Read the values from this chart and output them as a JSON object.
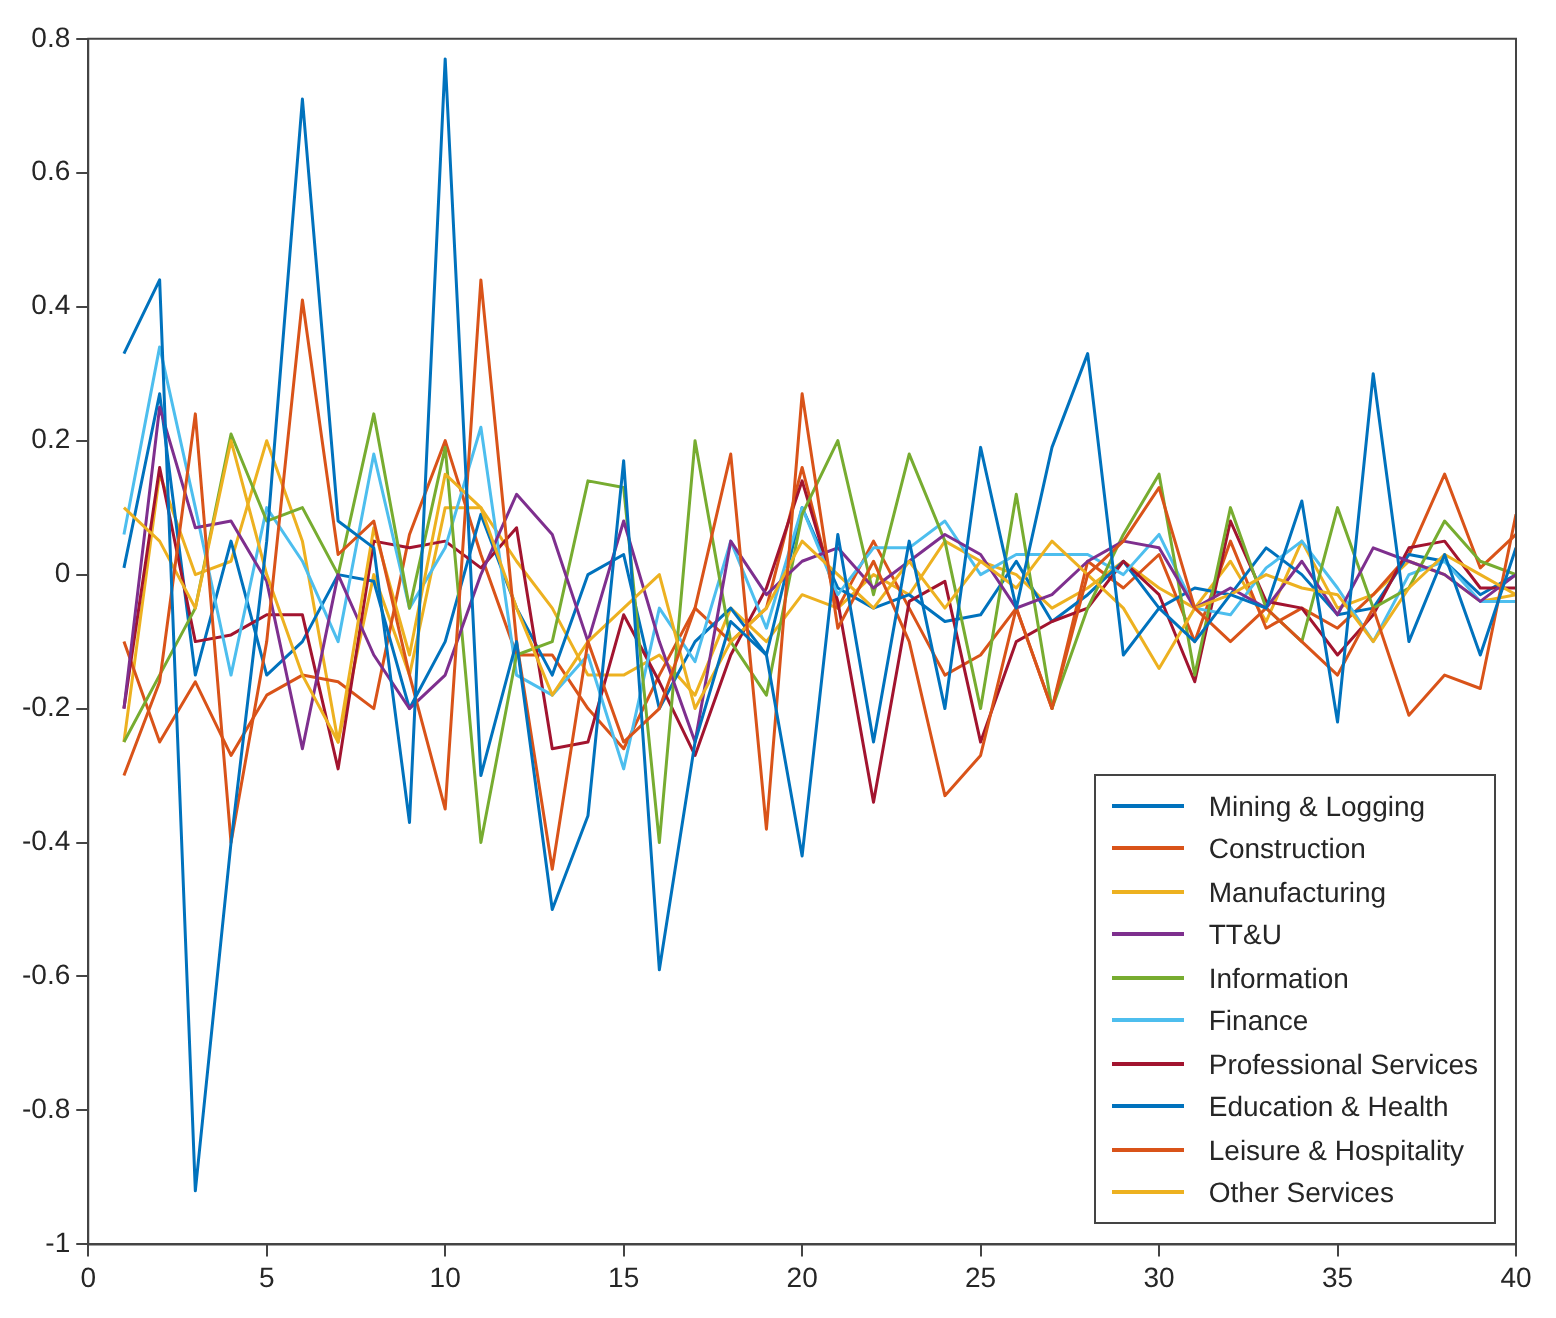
{
  "chart_data": {
    "type": "line",
    "xlim": [
      0,
      40
    ],
    "xticks": [
      0,
      5,
      10,
      15,
      20,
      25,
      30,
      35,
      40
    ],
    "ylim": [
      -1,
      0.8
    ],
    "yticks": [
      -1,
      -0.8,
      -0.6,
      -0.4,
      -0.2,
      0,
      0.2,
      0.4,
      0.6,
      0.8
    ],
    "grid": false,
    "legend": "bottom right",
    "marker": "none",
    "line_style": "solid",
    "x": [
      1,
      2,
      3,
      4,
      5,
      6,
      7,
      8,
      9,
      10,
      11,
      12,
      13,
      14,
      15,
      16,
      17,
      18,
      19,
      20,
      21,
      22,
      23,
      24,
      25,
      26,
      27,
      28,
      29,
      30,
      31,
      32,
      33,
      34,
      35,
      36,
      37,
      38,
      39,
      40
    ],
    "series": [
      {
        "name": "Mining & Logging",
        "color": "#0072bd",
        "values": [
          0.33,
          0.44,
          -0.92,
          -0.4,
          0.05,
          0.71,
          0.08,
          0.04,
          -0.37,
          0.77,
          -0.3,
          -0.1,
          -0.5,
          -0.36,
          0.17,
          -0.59,
          -0.25,
          -0.07,
          -0.12,
          -0.42,
          0.06,
          -0.25,
          0.05,
          -0.2,
          0.19,
          -0.05,
          0.19,
          0.33,
          -0.12,
          -0.05,
          -0.1,
          -0.03,
          -0.05,
          0.11,
          -0.22,
          0.3,
          -0.1,
          0.03,
          -0.12,
          0.04
        ]
      },
      {
        "name": "Construction",
        "color": "#d95319",
        "values": [
          -0.3,
          -0.16,
          0.24,
          -0.4,
          -0.1,
          0.41,
          0.03,
          0.08,
          -0.15,
          -0.35,
          0.44,
          -0.1,
          -0.44,
          -0.1,
          -0.25,
          -0.2,
          -0.05,
          0.18,
          -0.38,
          0.27,
          -0.08,
          0.02,
          -0.1,
          -0.33,
          -0.27,
          -0.05,
          -0.2,
          0,
          0.05,
          0.13,
          -0.05,
          -0.1,
          -0.05,
          -0.1,
          -0.15,
          -0.05,
          -0.21,
          -0.15,
          -0.17,
          0.09
        ]
      },
      {
        "name": "Manufacturing",
        "color": "#edb120",
        "values": [
          0.1,
          0.05,
          -0.05,
          0.2,
          0,
          -0.15,
          -0.25,
          0.07,
          -0.12,
          0.15,
          0.1,
          -0.05,
          -0.18,
          -0.1,
          -0.05,
          0,
          -0.2,
          -0.1,
          -0.05,
          0.05,
          0,
          -0.05,
          0.02,
          -0.05,
          0.02,
          -0.02,
          0.05,
          0,
          -0.05,
          -0.14,
          -0.05,
          -0.03,
          0,
          -0.02,
          -0.03,
          -0.1,
          -0.02,
          0.03,
          0,
          -0.03
        ]
      },
      {
        "name": "TT&U",
        "color": "#7e2f8e",
        "values": [
          -0.2,
          0.25,
          0.07,
          0.08,
          -0.01,
          -0.26,
          0,
          -0.12,
          -0.2,
          -0.15,
          0,
          0.12,
          0.06,
          -0.1,
          0.08,
          -0.1,
          -0.25,
          0.05,
          -0.03,
          0.02,
          0.04,
          -0.02,
          0.02,
          0.06,
          0.03,
          -0.05,
          -0.03,
          0.02,
          0.05,
          0.04,
          -0.05,
          -0.02,
          -0.05,
          0.02,
          -0.06,
          0.04,
          0.02,
          0,
          -0.04,
          0
        ]
      },
      {
        "name": "Information",
        "color": "#77ac30",
        "values": [
          -0.25,
          -0.15,
          -0.05,
          0.21,
          0.08,
          0.1,
          0,
          0.24,
          -0.05,
          0.19,
          -0.4,
          -0.12,
          -0.1,
          0.14,
          0.13,
          -0.4,
          0.2,
          -0.1,
          -0.18,
          0.09,
          0.2,
          -0.03,
          0.18,
          0.05,
          -0.2,
          0.12,
          -0.2,
          -0.05,
          0.06,
          0.15,
          -0.15,
          0.1,
          -0.05,
          -0.1,
          0.1,
          -0.05,
          -0.02,
          0.08,
          0.02,
          0
        ]
      },
      {
        "name": "Finance",
        "color": "#4dbeee",
        "values": [
          0.06,
          0.34,
          0.1,
          -0.15,
          0.1,
          0.02,
          -0.1,
          0.18,
          -0.05,
          0.04,
          0.22,
          -0.15,
          -0.18,
          -0.12,
          -0.29,
          -0.05,
          -0.13,
          0.05,
          -0.08,
          0.1,
          -0.03,
          0.04,
          0.04,
          0.08,
          0,
          0.03,
          0.03,
          0.03,
          0,
          0.06,
          -0.05,
          -0.06,
          0.01,
          0.05,
          -0.02,
          -0.1,
          0,
          0.02,
          -0.04,
          -0.04
        ]
      },
      {
        "name": "Professional Services",
        "color": "#a2142f",
        "values": [
          -0.2,
          0.16,
          -0.1,
          -0.09,
          -0.06,
          -0.06,
          -0.29,
          0.05,
          0.04,
          0.05,
          0.01,
          0.07,
          -0.26,
          -0.25,
          -0.06,
          -0.16,
          -0.27,
          -0.12,
          -0.02,
          0.14,
          -0.04,
          -0.34,
          -0.04,
          -0.01,
          -0.25,
          -0.1,
          -0.07,
          -0.05,
          0.02,
          -0.03,
          -0.16,
          0.08,
          -0.04,
          -0.05,
          -0.12,
          -0.06,
          0.04,
          0.05,
          -0.02,
          -0.02
        ]
      },
      {
        "name": "Education & Health",
        "color": "#0072bd",
        "values": [
          0.01,
          0.27,
          -0.15,
          0.05,
          -0.15,
          -0.1,
          0,
          -0.01,
          -0.2,
          -0.1,
          0.09,
          -0.05,
          -0.15,
          0,
          0.03,
          -0.2,
          -0.1,
          -0.05,
          -0.12,
          0.1,
          -0.02,
          -0.05,
          -0.03,
          -0.07,
          -0.06,
          0.02,
          -0.07,
          -0.03,
          0.02,
          -0.05,
          -0.02,
          -0.03,
          0.04,
          0,
          -0.06,
          -0.05,
          0.03,
          0.02,
          -0.03,
          0
        ]
      },
      {
        "name": "Leisure & Hospitality",
        "color": "#d95319",
        "values": [
          -0.1,
          -0.25,
          -0.16,
          -0.27,
          -0.18,
          -0.15,
          -0.16,
          -0.2,
          0.06,
          0.2,
          0.03,
          -0.12,
          -0.12,
          -0.2,
          -0.26,
          -0.15,
          -0.05,
          -0.1,
          -0.05,
          0.16,
          -0.05,
          0.05,
          -0.05,
          -0.15,
          -0.12,
          -0.05,
          -0.2,
          0.02,
          -0.02,
          0.03,
          -0.1,
          0.05,
          -0.08,
          -0.05,
          -0.08,
          -0.03,
          0.03,
          0.15,
          0.01,
          0.06
        ]
      },
      {
        "name": "Other Services",
        "color": "#edb120",
        "values": [
          -0.25,
          0.15,
          0,
          0.02,
          0.2,
          0.05,
          -0.25,
          0,
          -0.15,
          0.1,
          0.1,
          0.02,
          -0.05,
          -0.15,
          -0.15,
          -0.12,
          -0.18,
          -0.05,
          -0.1,
          -0.03,
          -0.05,
          0,
          -0.03,
          0.05,
          0.02,
          0,
          -0.05,
          -0.02,
          0.02,
          -0.02,
          -0.05,
          0.02,
          -0.07,
          0.05,
          -0.05,
          -0.03,
          0.02,
          0,
          -0.04,
          -0.03
        ]
      }
    ]
  }
}
